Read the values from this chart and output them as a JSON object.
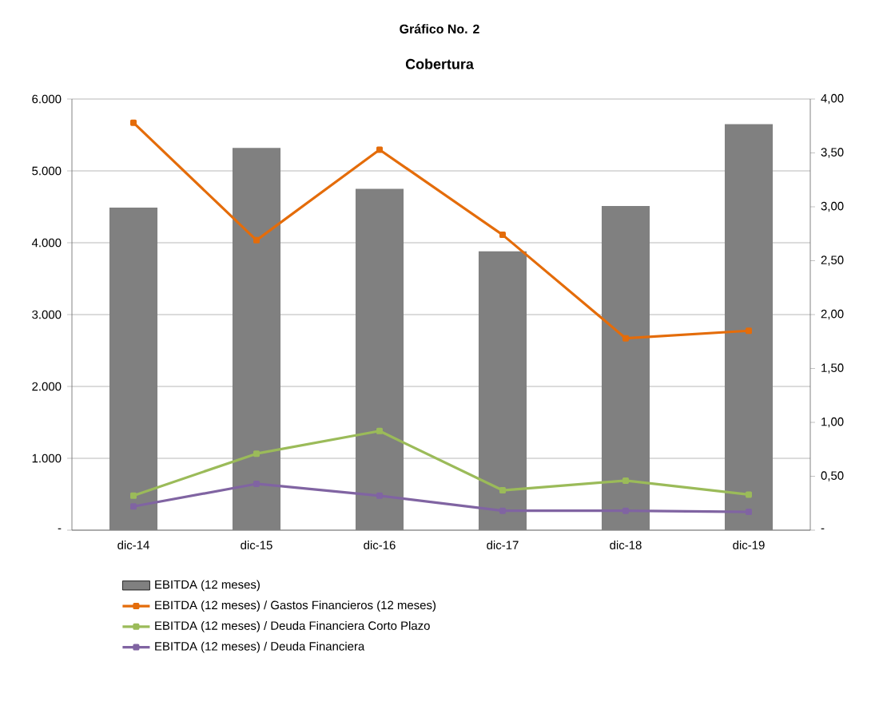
{
  "chart_data": {
    "type": "bar",
    "title": "Gráfico No. 2",
    "subtitle": "Cobertura",
    "categories": [
      "dic-14",
      "dic-15",
      "dic-16",
      "dic-17",
      "dic-18",
      "dic-19"
    ],
    "series": [
      {
        "name": "EBITDA (12 meses)",
        "color": "#808080",
        "values": [
          4490,
          5320,
          4750,
          3880,
          4510,
          5650
        ]
      },
      {
        "name": "EBITDA (12 meses) / Gastos Financieros (12 meses)",
        "type": "line",
        "axis": "y2",
        "color": "#e46c0a",
        "values": [
          3.78,
          2.69,
          3.53,
          2.74,
          1.78,
          1.85
        ]
      },
      {
        "name": "EBITDA (12 meses) / Deuda Financiera Corto Plazo",
        "type": "line",
        "axis": "y2",
        "color": "#9bbb59",
        "values": [
          0.32,
          0.71,
          0.92,
          0.37,
          0.46,
          0.33
        ]
      },
      {
        "name": "EBITDA  (12 meses) / Deuda Financiera",
        "type": "line",
        "axis": "y2",
        "color": "#8064a2",
        "values": [
          0.22,
          0.43,
          0.32,
          0.18,
          0.18,
          0.17
        ]
      }
    ],
    "ylim": [
      0,
      6000
    ],
    "yticks": [
      {
        "value": 0,
        "label": "-"
      },
      {
        "value": 1000,
        "label": "1.000"
      },
      {
        "value": 2000,
        "label": "2.000"
      },
      {
        "value": 3000,
        "label": "3.000"
      },
      {
        "value": 4000,
        "label": "4.000"
      },
      {
        "value": 5000,
        "label": "5.000"
      },
      {
        "value": 6000,
        "label": "6.000"
      }
    ],
    "y2lim": [
      0,
      4
    ],
    "y2ticks": [
      {
        "value": 0,
        "label": "-"
      },
      {
        "value": 0.5,
        "label": "0,50"
      },
      {
        "value": 1,
        "label": "1,00"
      },
      {
        "value": 1.5,
        "label": "1,50"
      },
      {
        "value": 2,
        "label": "2,00"
      },
      {
        "value": 2.5,
        "label": "2,50"
      },
      {
        "value": 3,
        "label": "3,00"
      },
      {
        "value": 3.5,
        "label": "3,50"
      },
      {
        "value": 4,
        "label": "4,00"
      }
    ],
    "grid": "y",
    "legend": "bottom",
    "marker": "square",
    "line_style": "solid"
  }
}
